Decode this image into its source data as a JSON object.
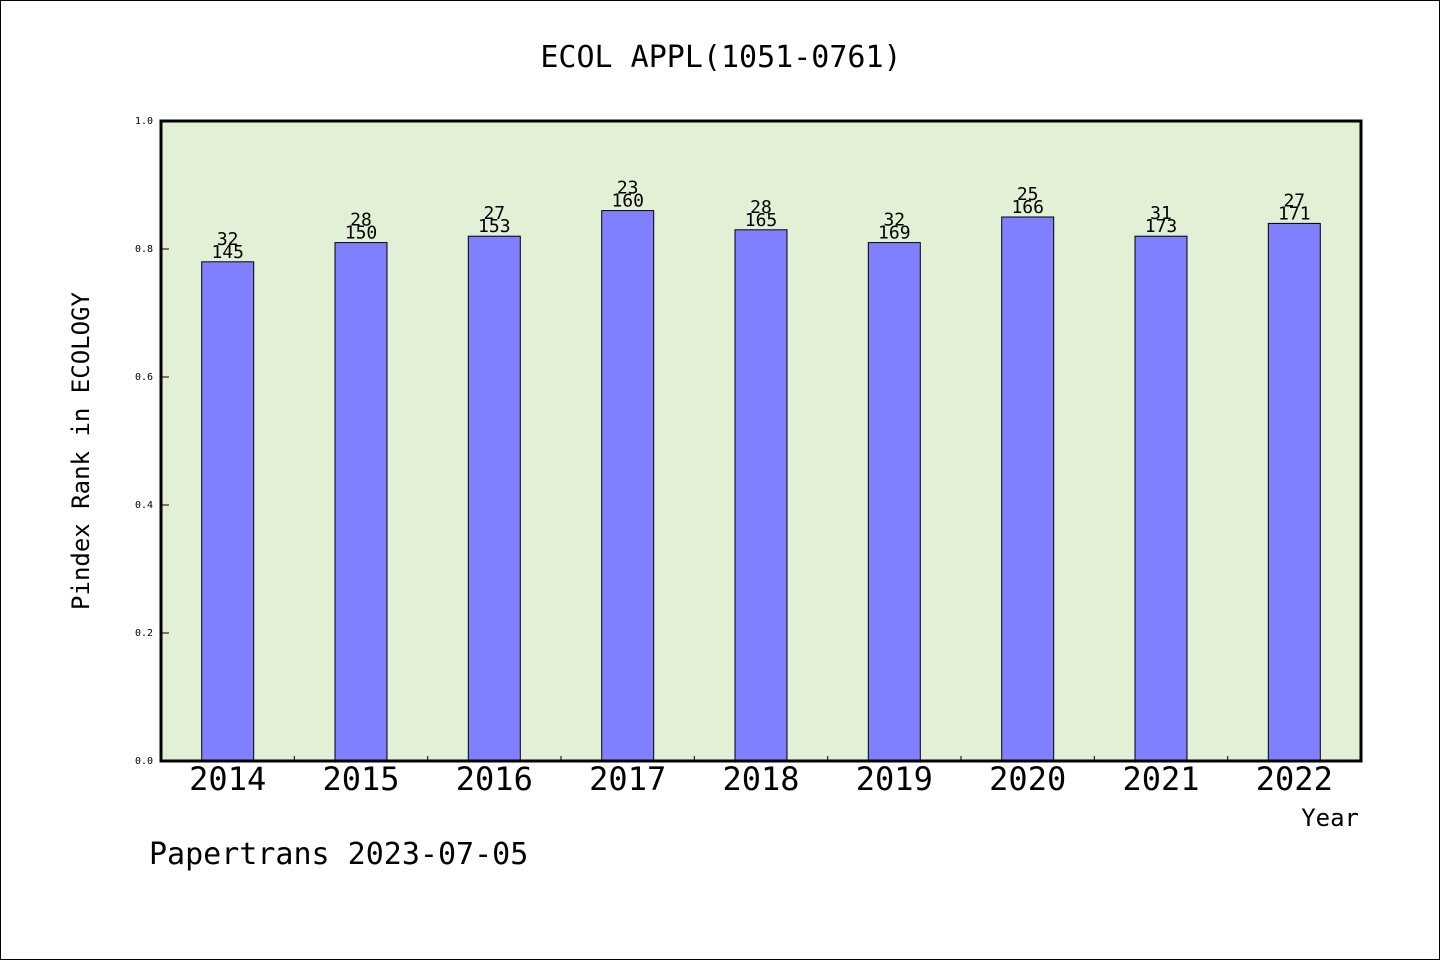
{
  "chart_data": {
    "type": "bar",
    "title": "ECOL APPL(1051-0761)",
    "xlabel": "Year",
    "ylabel": "Pindex Rank in ECOLOGY",
    "categories": [
      "2014",
      "2015",
      "2016",
      "2017",
      "2018",
      "2019",
      "2020",
      "2021",
      "2022"
    ],
    "values": [
      0.78,
      0.81,
      0.82,
      0.86,
      0.83,
      0.81,
      0.85,
      0.82,
      0.84
    ],
    "bar_labels_top": [
      "32",
      "28",
      "27",
      "23",
      "28",
      "32",
      "25",
      "31",
      "27"
    ],
    "bar_labels_bottom": [
      "145",
      "150",
      "153",
      "160",
      "165",
      "169",
      "166",
      "173",
      "171"
    ],
    "ylim": [
      0,
      1.0
    ],
    "yticks": [
      "0.0",
      "0.2",
      "0.4",
      "0.6",
      "0.8",
      "1.0"
    ],
    "grid": false,
    "legend": "none",
    "colors": {
      "bar": "#8080ff",
      "plot_background": "#e2f0d6",
      "frame": "#000000"
    }
  },
  "footer": {
    "text": "Papertrans 2023-07-05"
  }
}
